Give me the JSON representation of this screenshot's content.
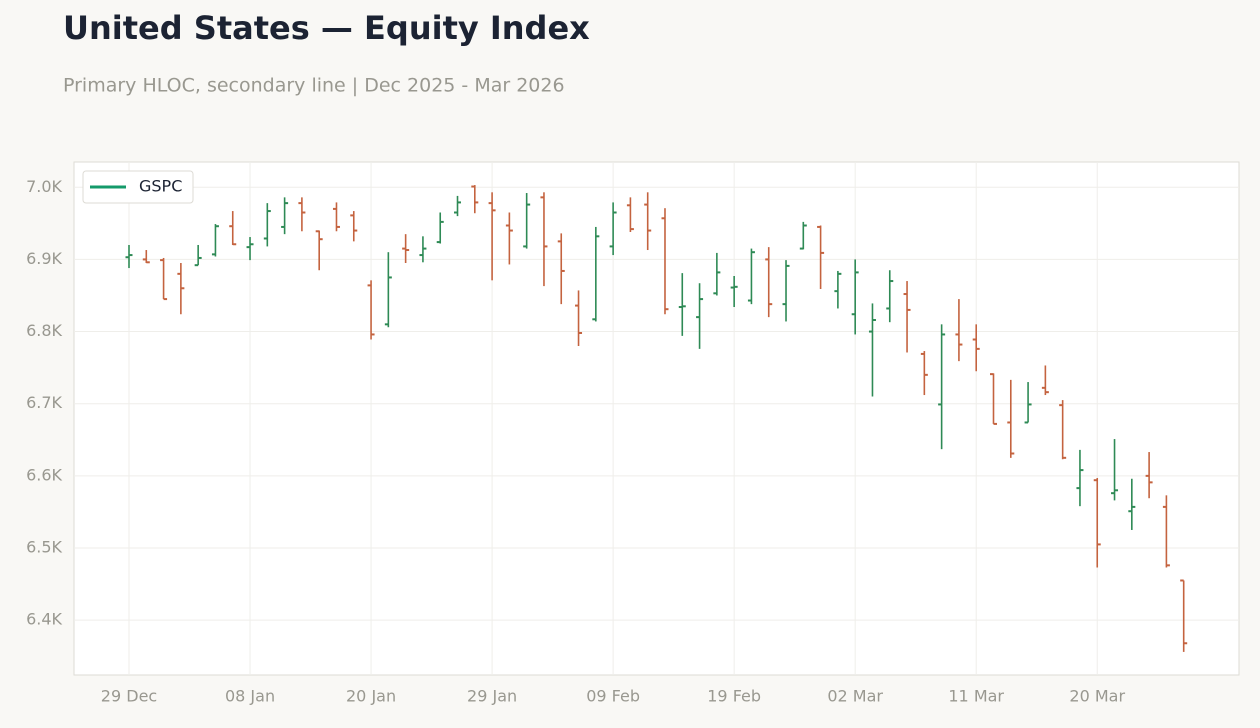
{
  "chart_data": {
    "type": "ohlc",
    "title": "United States — Equity Index",
    "subtitle": "Primary HLOC, secondary line | Dec 2025 - Mar 2026",
    "categories": [
      "29 Dec",
      null,
      null,
      null,
      null,
      null,
      null,
      "08 Jan",
      null,
      null,
      null,
      null,
      null,
      null,
      "20 Jan",
      null,
      null,
      null,
      null,
      null,
      null,
      "29 Jan",
      null,
      null,
      null,
      null,
      null,
      null,
      "09 Feb",
      null,
      null,
      null,
      null,
      null,
      null,
      "19 Feb",
      null,
      null,
      null,
      null,
      null,
      null,
      "02 Mar",
      null,
      null,
      null,
      null,
      null,
      null,
      "11 Mar",
      null,
      null,
      null,
      null,
      null,
      null,
      "20 Mar",
      null,
      null,
      null,
      null,
      null
    ],
    "series": [
      {
        "name": "GSPC",
        "color": "#149a6a",
        "open": [
          6903,
          6900,
          6899,
          6880,
          6892,
          6907,
          6946,
          6917,
          6929,
          6945,
          6978,
          6939,
          6970,
          6961,
          6864,
          6810,
          6915,
          6906,
          6924,
          6965,
          7001,
          6978,
          6947,
          6918,
          6986,
          6925,
          6836,
          6817,
          6918,
          6975,
          6976,
          6957,
          6834,
          6820,
          6853,
          6861,
          6843,
          6900,
          6838,
          6915,
          6945,
          6856,
          6824,
          6800,
          6832,
          6852,
          6769,
          6699,
          6796,
          6789,
          6741,
          6674,
          6674,
          6722,
          6698,
          6583,
          6594,
          6576,
          6551,
          6600,
          6557,
          6455
        ],
        "high": [
          6920,
          6913,
          6902,
          6895,
          6920,
          6949,
          6967,
          6931,
          6978,
          6986,
          6986,
          6940,
          6979,
          6967,
          6871,
          6910,
          6935,
          6932,
          6965,
          6988,
          7003,
          6993,
          6965,
          6992,
          6993,
          6936,
          6857,
          6945,
          6979,
          6986,
          6993,
          6971,
          6881,
          6867,
          6909,
          6877,
          6915,
          6917,
          6899,
          6952,
          6947,
          6884,
          6900,
          6839,
          6885,
          6870,
          6773,
          6810,
          6845,
          6810,
          6742,
          6733,
          6730,
          6753,
          6705,
          6636,
          6597,
          6651,
          6596,
          6633,
          6573,
          6455
        ],
        "low": [
          6888,
          6895,
          6845,
          6824,
          6892,
          6904,
          6920,
          6899,
          6918,
          6935,
          6939,
          6885,
          6939,
          6925,
          6789,
          6806,
          6895,
          6896,
          6922,
          6960,
          6964,
          6871,
          6893,
          6915,
          6863,
          6838,
          6780,
          6814,
          6906,
          6938,
          6913,
          6824,
          6794,
          6776,
          6850,
          6834,
          6838,
          6820,
          6814,
          6914,
          6859,
          6832,
          6796,
          6710,
          6813,
          6771,
          6712,
          6637,
          6759,
          6745,
          6672,
          6625,
          6674,
          6712,
          6623,
          6558,
          6473,
          6566,
          6525,
          6569,
          6473,
          6356
        ],
        "close": [
          6906,
          6896,
          6845,
          6860,
          6902,
          6946,
          6921,
          6921,
          6967,
          6978,
          6965,
          6928,
          6945,
          6940,
          6796,
          6875,
          6913,
          6915,
          6952,
          6979,
          6979,
          6968,
          6940,
          6976,
          6918,
          6884,
          6798,
          6932,
          6965,
          6942,
          6940,
          6831,
          6835,
          6845,
          6882,
          6862,
          6910,
          6838,
          6891,
          6947,
          6909,
          6880,
          6882,
          6816,
          6870,
          6830,
          6740,
          6796,
          6782,
          6776,
          6672,
          6631,
          6699,
          6716,
          6625,
          6608,
          6505,
          6580,
          6557,
          6591,
          6476,
          6368
        ]
      }
    ],
    "up_color": "#2e8a55",
    "down_color": "#c4633f",
    "ylim": [
      6324,
      7035
    ],
    "yticks": [
      {
        "value": 6400,
        "label": "6.4K"
      },
      {
        "value": 6500,
        "label": "6.5K"
      },
      {
        "value": 6600,
        "label": "6.6K"
      },
      {
        "value": 6700,
        "label": "6.7K"
      },
      {
        "value": 6800,
        "label": "6.8K"
      },
      {
        "value": 6900,
        "label": "6.9K"
      },
      {
        "value": 7000,
        "label": "7.0K"
      }
    ],
    "grid": true,
    "legend": "upper left"
  }
}
